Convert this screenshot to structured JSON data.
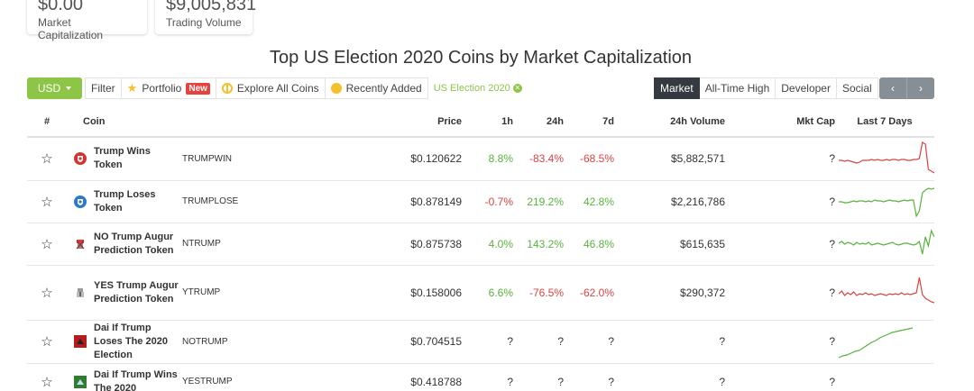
{
  "stats": [
    {
      "value": "$0.00",
      "label": "Market Capitalization"
    },
    {
      "value": "$9,005,831",
      "label": "Trading Volume"
    }
  ],
  "title": "Top US Election 2020 Coins by Market Capitalization",
  "toolbar": {
    "currency": "USD",
    "filter": "Filter",
    "portfolio": "Portfolio",
    "new_badge": "New",
    "explore": "Explore All Coins",
    "recently_added": "Recently Added",
    "category_tag": "US Election 2020"
  },
  "tabs": [
    "Market",
    "All-Time High",
    "Developer",
    "Social"
  ],
  "pager": {
    "prev": "‹",
    "next": "›"
  },
  "headers": {
    "rank": "#",
    "coin": "Coin",
    "price": "Price",
    "h1": "1h",
    "h24": "24h",
    "d7": "7d",
    "volume": "24h Volume",
    "mcap": "Mkt Cap",
    "last7": "Last 7 Days"
  },
  "rows": [
    {
      "name": "Trump Wins Token",
      "symbol": "TRUMPWIN",
      "price": "$0.120622",
      "h1": "8.8%",
      "h24": "-83.4%",
      "d7": "-68.5%",
      "volume": "$5,882,571",
      "mcap": "?",
      "icon": "red-shield-icon",
      "spark_color": "#d94443"
    },
    {
      "name": "Trump Loses Token",
      "symbol": "TRUMPLOSE",
      "price": "$0.878149",
      "h1": "-0.7%",
      "h24": "219.2%",
      "d7": "42.8%",
      "volume": "$2,216,786",
      "mcap": "?",
      "icon": "blue-shield-icon",
      "spark_color": "#58b33d"
    },
    {
      "name": "NO Trump Augur Prediction Token",
      "symbol": "NTRUMP",
      "price": "$0.875738",
      "h1": "4.0%",
      "h24": "143.2%",
      "d7": "46.8%",
      "volume": "$615,635",
      "mcap": "?",
      "icon": "no-trump-icon",
      "spark_color": "#58b33d"
    },
    {
      "name": "YES Trump Augur Prediction Token",
      "symbol": "YTRUMP",
      "price": "$0.158006",
      "h1": "6.6%",
      "h24": "-76.5%",
      "d7": "-62.0%",
      "volume": "$290,372",
      "mcap": "?",
      "icon": "yes-trump-icon",
      "spark_color": "#d94443"
    },
    {
      "name": "Dai If Trump Loses The 2020 Election",
      "symbol": "NOTRUMP",
      "price": "$0.704515",
      "h1": "?",
      "h24": "?",
      "d7": "?",
      "volume": "?",
      "mcap": "?",
      "icon": "red-square-icon",
      "spark_color": "#58b33d"
    },
    {
      "name": "Dai If Trump Wins The 2020",
      "symbol": "YESTRUMP",
      "price": "$0.418788",
      "h1": "?",
      "h24": "?",
      "d7": "?",
      "volume": "?",
      "mcap": "?",
      "icon": "green-square-icon",
      "spark_color": "#58b33d"
    }
  ]
}
